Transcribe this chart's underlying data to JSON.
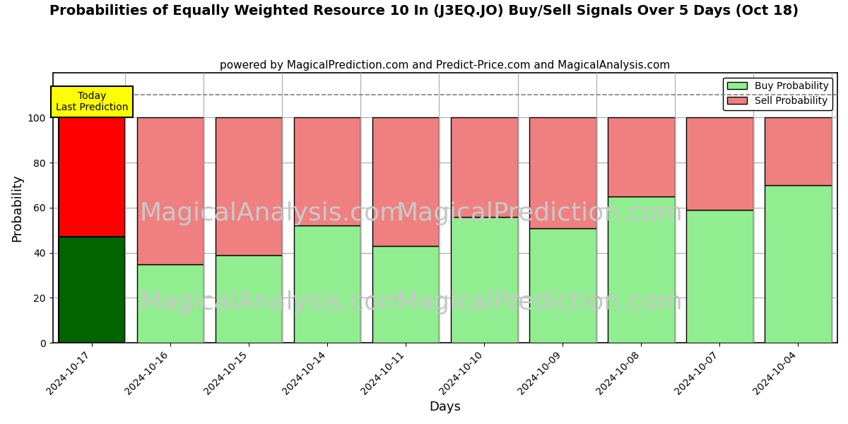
{
  "title": "Probabilities of Equally Weighted Resource 10 In (J3EQ.JO) Buy/Sell Signals Over 5 Days (Oct 18)",
  "subtitle": "powered by MagicalPrediction.com and Predict-Price.com and MagicalAnalysis.com",
  "xlabel": "Days",
  "ylabel": "Probability",
  "categories": [
    "2024-10-17",
    "2024-10-16",
    "2024-10-15",
    "2024-10-14",
    "2024-10-11",
    "2024-10-10",
    "2024-10-09",
    "2024-10-08",
    "2024-10-07",
    "2024-10-04"
  ],
  "buy_values": [
    47,
    35,
    39,
    52,
    43,
    56,
    51,
    65,
    59,
    70
  ],
  "sell_values": [
    53,
    65,
    61,
    48,
    57,
    44,
    49,
    35,
    41,
    30
  ],
  "today_index": 0,
  "today_buy_color": "#006400",
  "today_sell_color": "#FF0000",
  "other_buy_color": "#90EE90",
  "other_sell_color": "#F08080",
  "bar_edge_color": "#000000",
  "ylim": [
    0,
    120
  ],
  "yticks": [
    0,
    20,
    40,
    60,
    80,
    100
  ],
  "dashed_line_y": 110,
  "watermark_color": "#c8c8c8",
  "today_label_text": "Today\nLast Prediction",
  "today_box_color": "#FFFF00",
  "legend_buy_label": "Buy Probability",
  "legend_sell_label": "Sell Probability",
  "background_color": "#ffffff",
  "grid_color": "#aaaaaa",
  "title_fontsize": 14,
  "subtitle_fontsize": 11,
  "axis_label_fontsize": 13,
  "bar_width": 0.85
}
